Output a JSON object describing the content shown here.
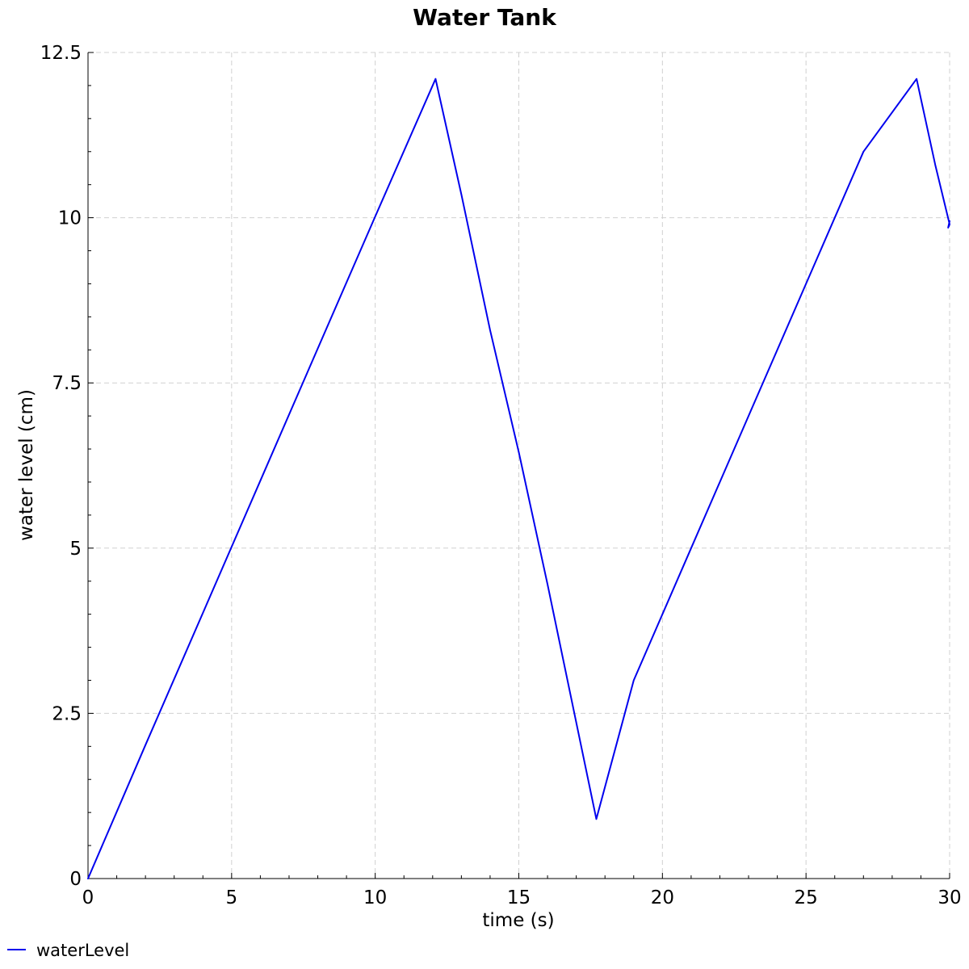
{
  "chart_data": {
    "type": "line",
    "title": "Water Tank",
    "xlabel": "time (s)",
    "ylabel": "water level (cm)",
    "xlim": [
      0,
      30
    ],
    "ylim": [
      0,
      12.5
    ],
    "x_ticks": [
      0,
      5,
      10,
      15,
      20,
      25,
      30
    ],
    "x_tick_labels": [
      "0",
      "5",
      "10",
      "15",
      "20",
      "25",
      "30"
    ],
    "y_ticks": [
      0,
      2.5,
      5,
      7.5,
      10,
      12.5
    ],
    "y_tick_labels": [
      "0",
      "2.5",
      "5",
      "7.5",
      "10",
      "12.5"
    ],
    "grid": true,
    "legend_position": "bottom-left",
    "series": [
      {
        "name": "waterLevel",
        "color": "#0000ee",
        "x": [
          0,
          2,
          4,
          6,
          8,
          10,
          12.1,
          13,
          14,
          15,
          16,
          17.7,
          19,
          21,
          23,
          25,
          27,
          28.85,
          29.5,
          30,
          29.95,
          30
        ],
        "y": [
          0,
          2.02,
          4.02,
          6.02,
          8.02,
          10.02,
          12.1,
          10.35,
          8.3,
          6.45,
          4.45,
          0.9,
          3.0,
          5.0,
          7.0,
          9.0,
          11.0,
          12.1,
          10.8,
          9.9,
          9.85,
          9.95
        ]
      }
    ]
  }
}
